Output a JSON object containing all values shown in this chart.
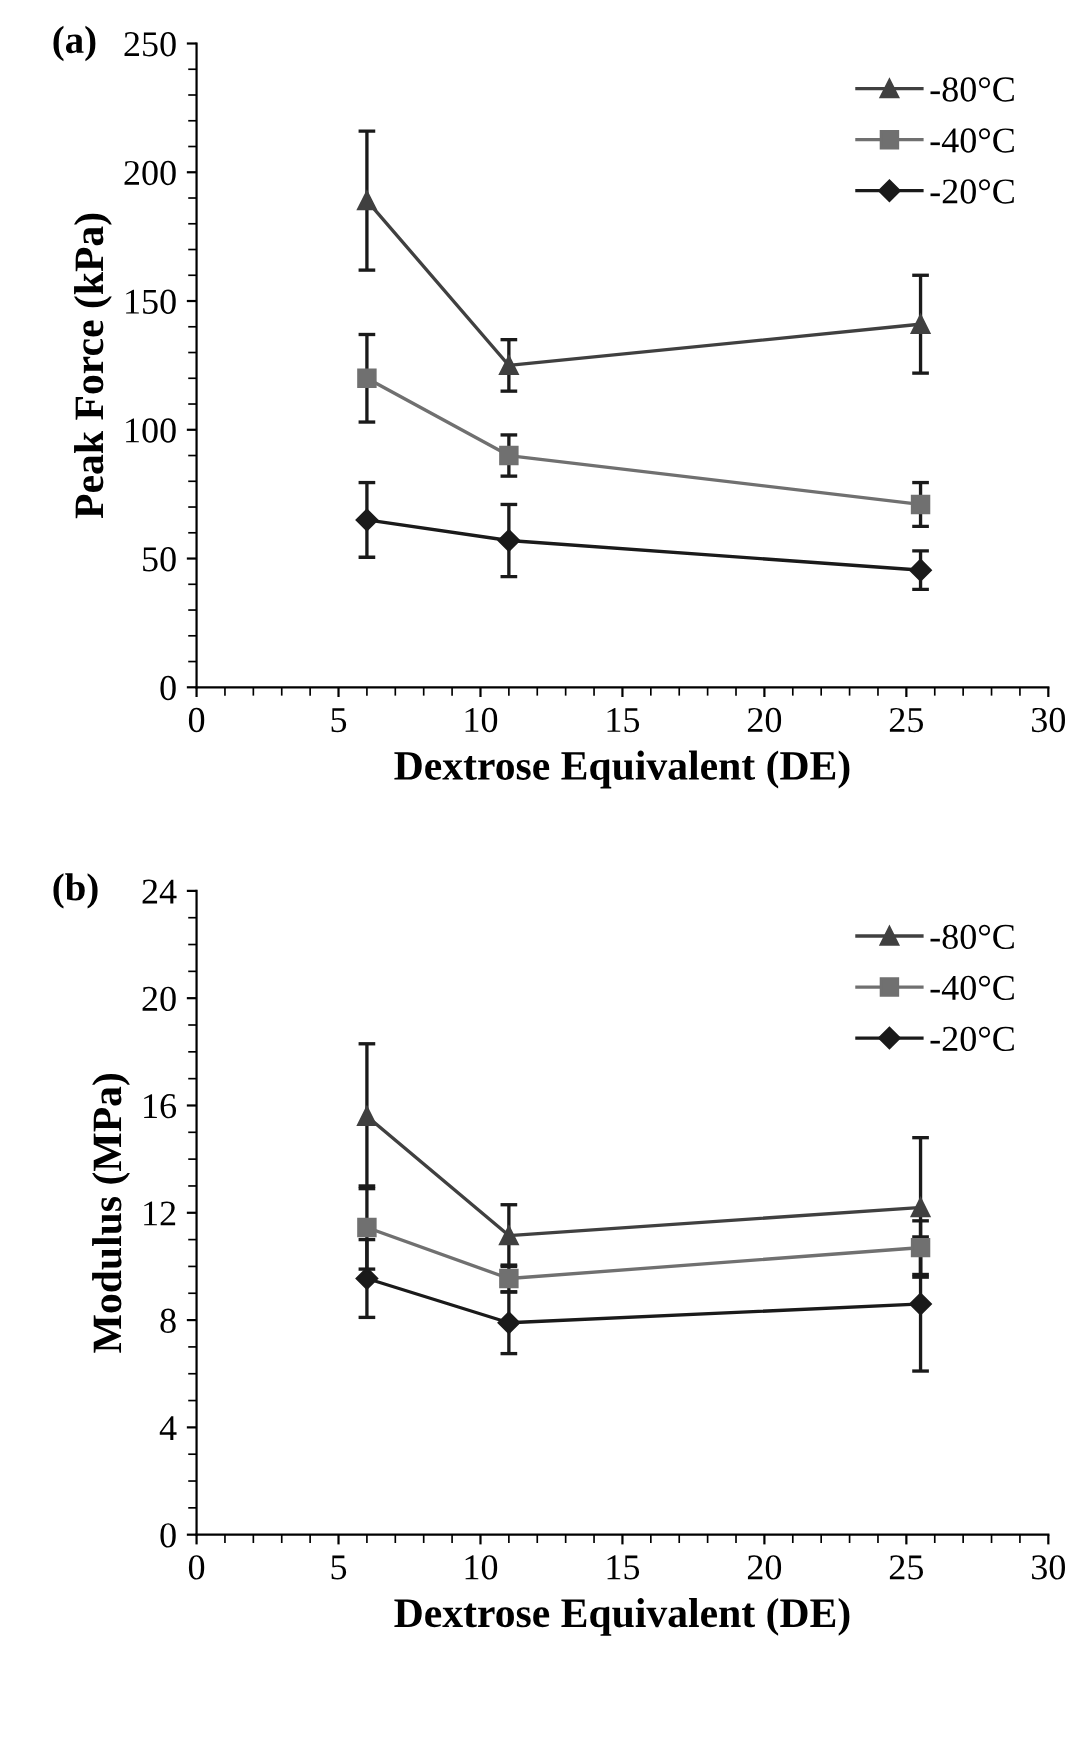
{
  "chart_data": [
    {
      "type": "line",
      "xlabel": "Dextrose Equivalent (DE)",
      "ylabel": "Peak Force (kPa)",
      "annotations": [
        "(a)"
      ],
      "xlim": [
        0,
        30
      ],
      "xticks": [
        0,
        5,
        10,
        15,
        20,
        25,
        30
      ],
      "ylim": [
        0,
        250
      ],
      "yticks": [
        0,
        50,
        100,
        150,
        200,
        250
      ],
      "grid": false,
      "legend": "top right",
      "x": [
        6,
        11,
        25.5
      ],
      "series": [
        {
          "name": "-80°C",
          "color": "#404040",
          "marker": "triangle",
          "values": [
            189,
            125,
            141
          ],
          "errors": [
            27,
            10,
            19
          ]
        },
        {
          "name": "-40°C",
          "color": "#707070",
          "marker": "square",
          "values": [
            120,
            90,
            71
          ],
          "errors": [
            17,
            8,
            8.5
          ]
        },
        {
          "name": "-20°C",
          "color": "#1a1a1a",
          "marker": "diamond",
          "values": [
            65,
            57,
            45.5
          ],
          "errors": [
            14.5,
            14,
            7.5
          ]
        }
      ]
    },
    {
      "type": "line",
      "xlabel": "Dextrose Equivalent (DE)",
      "ylabel": "Modulus (MPa)",
      "annotations": [
        "(b)"
      ],
      "xlim": [
        0,
        30
      ],
      "xticks": [
        0,
        5,
        10,
        15,
        20,
        25,
        30
      ],
      "ylim": [
        0,
        24
      ],
      "yticks": [
        0,
        4,
        8,
        12,
        16,
        20,
        24
      ],
      "grid": false,
      "legend": "top right",
      "x": [
        6,
        11,
        25.5
      ],
      "series": [
        {
          "name": "-80°C",
          "color": "#404040",
          "marker": "triangle",
          "values": [
            15.6,
            11.15,
            12.2
          ],
          "errors": [
            2.7,
            1.15,
            2.6
          ]
        },
        {
          "name": "-40°C",
          "color": "#707070",
          "marker": "square",
          "values": [
            11.45,
            9.55,
            10.7
          ],
          "errors": [
            1.55,
            0.5,
            1.0
          ]
        },
        {
          "name": "-20°C",
          "color": "#1a1a1a",
          "marker": "diamond",
          "values": [
            9.55,
            7.9,
            8.6
          ],
          "errors": [
            1.45,
            1.15,
            2.5
          ]
        }
      ]
    }
  ]
}
